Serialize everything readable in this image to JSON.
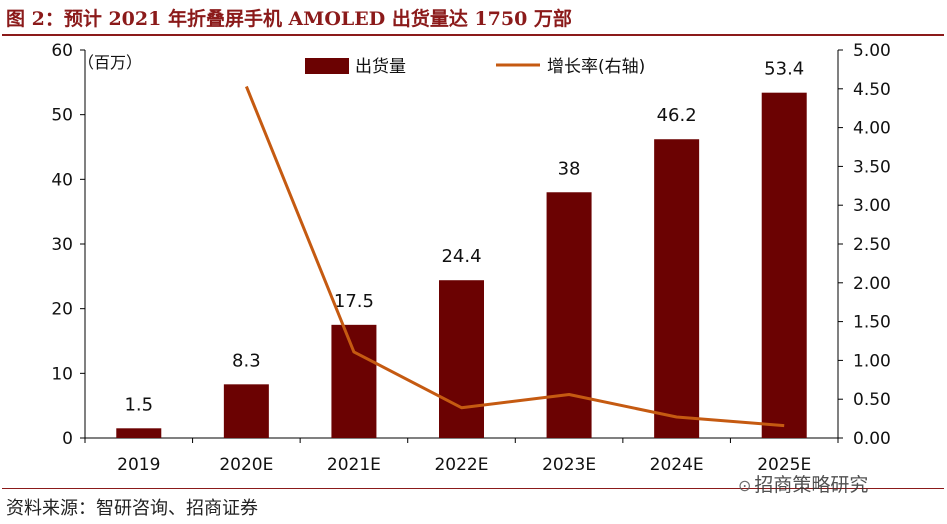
{
  "title": "图 2：预计 2021 年折叠屏手机 AMOLED 出货量达 1750 万部",
  "source": "资料来源：智研咨询、招商证券",
  "watermark": "招商策略研究",
  "colors": {
    "bar": "#6b0202",
    "line": "#c55a11",
    "accent": "#8b1a1a"
  },
  "chart_data": {
    "type": "bar",
    "categories": [
      "2019",
      "2020E",
      "2021E",
      "2022E",
      "2023E",
      "2024E",
      "2025E"
    ],
    "unit_label": "（百万）",
    "series": [
      {
        "name": "出货量",
        "type": "bar",
        "axis": "left",
        "values": [
          1.5,
          8.3,
          17.5,
          24.4,
          38,
          46.2,
          53.4
        ],
        "labels": [
          "1.5",
          "8.3",
          "17.5",
          "24.4",
          "38",
          "46.2",
          "53.4"
        ]
      },
      {
        "name": "增长率(右轴)",
        "type": "line",
        "axis": "right",
        "values": [
          null,
          4.53,
          1.11,
          0.39,
          0.56,
          0.27,
          0.16
        ]
      }
    ],
    "y_left": {
      "min": 0,
      "max": 60,
      "ticks": [
        0,
        10,
        20,
        30,
        40,
        50,
        60
      ]
    },
    "y_right": {
      "min": 0,
      "max": 5,
      "ticks": [
        "0.00",
        "0.50",
        "1.00",
        "1.50",
        "2.00",
        "2.50",
        "3.00",
        "3.50",
        "4.00",
        "4.50",
        "5.00"
      ]
    },
    "legend_position": "top-center",
    "grid": false
  }
}
